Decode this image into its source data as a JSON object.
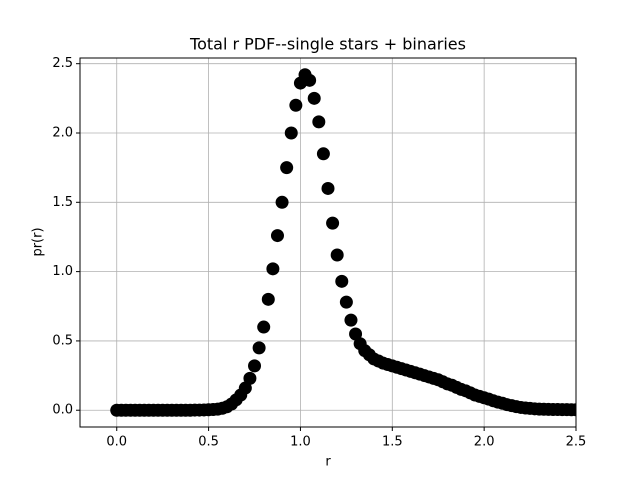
{
  "chart_data": {
    "type": "scatter",
    "title": "Total r PDF--single stars + binaries",
    "xlabel": "r",
    "ylabel": "pr(r)",
    "color": "#000000",
    "grid": true,
    "xlim": [
      -0.2,
      2.5
    ],
    "ylim": [
      -0.121,
      2.541
    ],
    "xticks": [
      {
        "value": 0,
        "label": "0.0"
      },
      0.5,
      {
        "value": 1,
        "label": "1.0"
      },
      1.5,
      {
        "value": 2,
        "label": "2.0"
      },
      2.5
    ],
    "yticks": [
      {
        "value": 0,
        "label": "0.0"
      },
      0.5,
      {
        "value": 1,
        "label": "1.0"
      },
      1.5,
      {
        "value": 2,
        "label": "2.0"
      },
      2.5
    ],
    "x": [
      0,
      0.025,
      0.05,
      0.075,
      0.1,
      0.125,
      0.15,
      0.175,
      0.2,
      0.225,
      0.25,
      0.275,
      0.3,
      0.325,
      0.35,
      0.375,
      0.4,
      0.425,
      0.45,
      0.475,
      0.5,
      0.525,
      0.55,
      0.575,
      0.6,
      0.625,
      0.65,
      0.675,
      0.7,
      0.725,
      0.75,
      0.775,
      0.8,
      0.825,
      0.85,
      0.875,
      0.9,
      0.925,
      0.95,
      0.975,
      1.0,
      1.025,
      1.05,
      1.075,
      1.1,
      1.125,
      1.15,
      1.175,
      1.2,
      1.225,
      1.25,
      1.275,
      1.3,
      1.325,
      1.35,
      1.375,
      1.4,
      1.425,
      1.45,
      1.475,
      1.5,
      1.525,
      1.55,
      1.575,
      1.6,
      1.625,
      1.65,
      1.675,
      1.7,
      1.725,
      1.75,
      1.775,
      1.8,
      1.825,
      1.85,
      1.875,
      1.9,
      1.925,
      1.95,
      1.975,
      2.0,
      2.025,
      2.05,
      2.075,
      2.1,
      2.125,
      2.15,
      2.175,
      2.2,
      2.225,
      2.25,
      2.275,
      2.3,
      2.325,
      2.35,
      2.375,
      2.4,
      2.425,
      2.45,
      2.475,
      2.5
    ],
    "values": [
      0,
      0,
      0,
      0,
      0,
      0,
      0,
      0,
      0,
      0,
      0,
      0,
      0,
      0,
      0,
      0,
      0,
      0.001,
      0.001,
      0.002,
      0.003,
      0.005,
      0.008,
      0.014,
      0.025,
      0.045,
      0.075,
      0.11,
      0.16,
      0.23,
      0.32,
      0.45,
      0.6,
      0.8,
      1.02,
      1.26,
      1.5,
      1.75,
      2.0,
      2.2,
      2.36,
      2.42,
      2.38,
      2.25,
      2.08,
      1.85,
      1.6,
      1.35,
      1.12,
      0.93,
      0.78,
      0.65,
      0.55,
      0.48,
      0.43,
      0.4,
      0.37,
      0.355,
      0.34,
      0.33,
      0.32,
      0.31,
      0.3,
      0.29,
      0.28,
      0.27,
      0.26,
      0.25,
      0.24,
      0.23,
      0.22,
      0.205,
      0.19,
      0.18,
      0.165,
      0.15,
      0.14,
      0.125,
      0.11,
      0.1,
      0.09,
      0.08,
      0.068,
      0.058,
      0.05,
      0.04,
      0.033,
      0.026,
      0.02,
      0.016,
      0.013,
      0.01,
      0.008,
      0.007,
      0.006,
      0.005,
      0.005,
      0.004,
      0.004,
      0.003,
      0.003
    ]
  }
}
